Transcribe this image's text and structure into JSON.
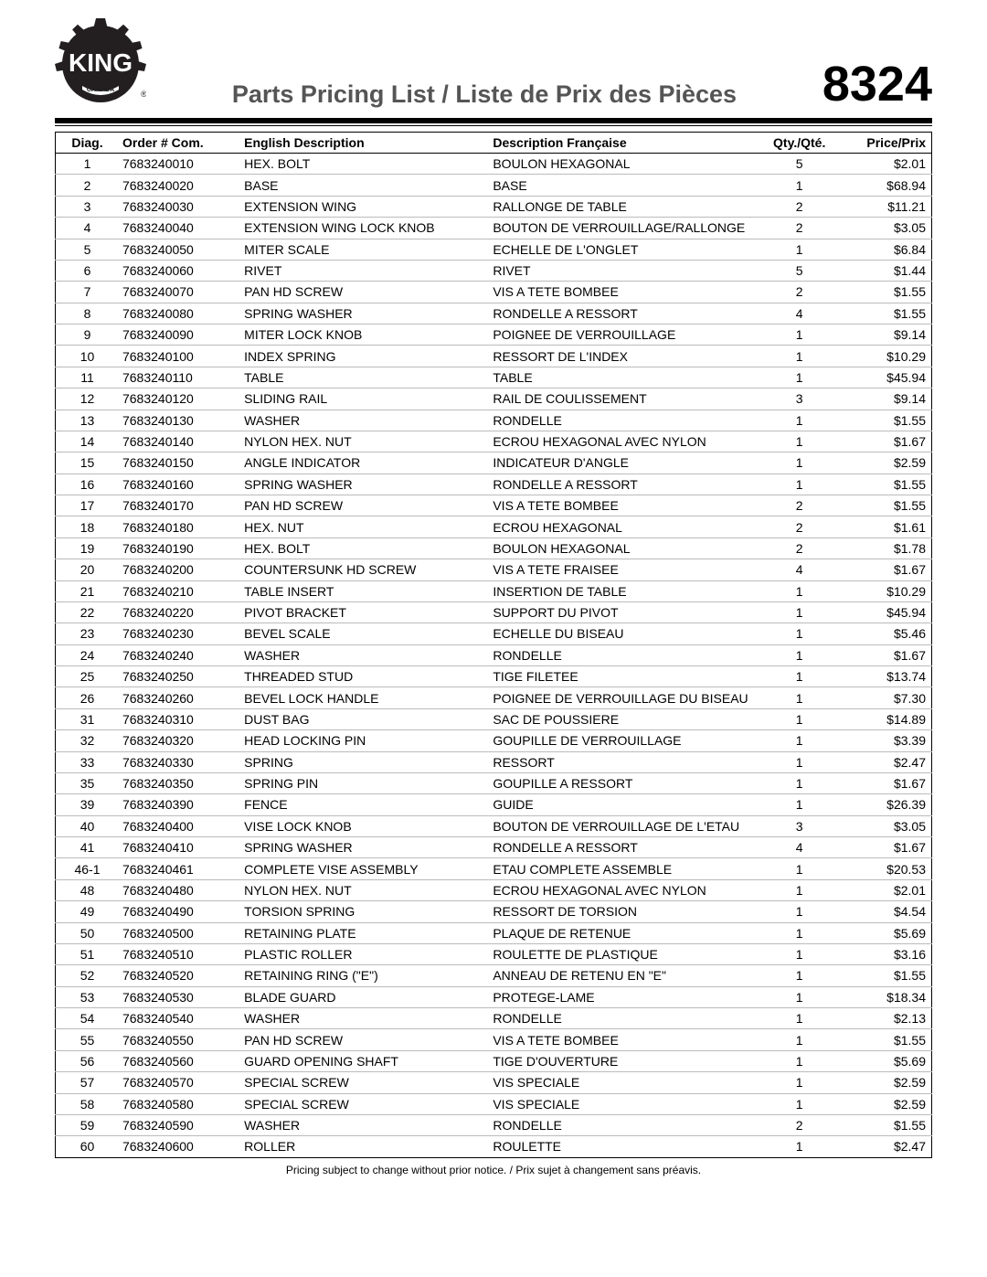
{
  "header": {
    "title": "Parts Pricing List / Liste de Prix des Pièces",
    "model": "8324",
    "logo_alt": "KING Canada"
  },
  "columns": {
    "diag": "Diag.",
    "order": "Order # Com.",
    "en": "English Description",
    "fr": "Description Française",
    "qty": "Qty./Qté.",
    "price": "Price/Prix"
  },
  "rows": [
    {
      "diag": "1",
      "order": "7683240010",
      "en": "HEX. BOLT",
      "fr": "BOULON HEXAGONAL",
      "qty": "5",
      "price": "$2.01"
    },
    {
      "diag": "2",
      "order": "7683240020",
      "en": "BASE",
      "fr": "BASE",
      "qty": "1",
      "price": "$68.94"
    },
    {
      "diag": "3",
      "order": "7683240030",
      "en": "EXTENSION WING",
      "fr": "RALLONGE DE TABLE",
      "qty": "2",
      "price": "$11.21"
    },
    {
      "diag": "4",
      "order": "7683240040",
      "en": "EXTENSION WING LOCK KNOB",
      "fr": "BOUTON DE VERROUILLAGE/RALLONGE",
      "qty": "2",
      "price": "$3.05"
    },
    {
      "diag": "5",
      "order": "7683240050",
      "en": "MITER SCALE",
      "fr": "ECHELLE DE L'ONGLET",
      "qty": "1",
      "price": "$6.84"
    },
    {
      "diag": "6",
      "order": "7683240060",
      "en": "RIVET",
      "fr": "RIVET",
      "qty": "5",
      "price": "$1.44"
    },
    {
      "diag": "7",
      "order": "7683240070",
      "en": "PAN HD SCREW",
      "fr": "VIS A TETE BOMBEE",
      "qty": "2",
      "price": "$1.55"
    },
    {
      "diag": "8",
      "order": "7683240080",
      "en": "SPRING WASHER",
      "fr": "RONDELLE A RESSORT",
      "qty": "4",
      "price": "$1.55"
    },
    {
      "diag": "9",
      "order": "7683240090",
      "en": "MITER LOCK KNOB",
      "fr": "POIGNEE DE VERROUILLAGE",
      "qty": "1",
      "price": "$9.14"
    },
    {
      "diag": "10",
      "order": "7683240100",
      "en": "INDEX SPRING",
      "fr": "RESSORT DE L'INDEX",
      "qty": "1",
      "price": "$10.29"
    },
    {
      "diag": "11",
      "order": "7683240110",
      "en": "TABLE",
      "fr": "TABLE",
      "qty": "1",
      "price": "$45.94"
    },
    {
      "diag": "12",
      "order": "7683240120",
      "en": "SLIDING RAIL",
      "fr": "RAIL DE COULISSEMENT",
      "qty": "3",
      "price": "$9.14"
    },
    {
      "diag": "13",
      "order": "7683240130",
      "en": "WASHER",
      "fr": "RONDELLE",
      "qty": "1",
      "price": "$1.55"
    },
    {
      "diag": "14",
      "order": "7683240140",
      "en": "NYLON HEX. NUT",
      "fr": "ECROU HEXAGONAL AVEC NYLON",
      "qty": "1",
      "price": "$1.67"
    },
    {
      "diag": "15",
      "order": "7683240150",
      "en": "ANGLE INDICATOR",
      "fr": "INDICATEUR D'ANGLE",
      "qty": "1",
      "price": "$2.59"
    },
    {
      "diag": "16",
      "order": "7683240160",
      "en": "SPRING WASHER",
      "fr": "RONDELLE A RESSORT",
      "qty": "1",
      "price": "$1.55"
    },
    {
      "diag": "17",
      "order": "7683240170",
      "en": "PAN HD SCREW",
      "fr": "VIS A TETE BOMBEE",
      "qty": "2",
      "price": "$1.55"
    },
    {
      "diag": "18",
      "order": "7683240180",
      "en": "HEX. NUT",
      "fr": "ECROU HEXAGONAL",
      "qty": "2",
      "price": "$1.61"
    },
    {
      "diag": "19",
      "order": "7683240190",
      "en": "HEX. BOLT",
      "fr": "BOULON HEXAGONAL",
      "qty": "2",
      "price": "$1.78"
    },
    {
      "diag": "20",
      "order": "7683240200",
      "en": "COUNTERSUNK HD SCREW",
      "fr": "VIS A TETE FRAISEE",
      "qty": "4",
      "price": "$1.67"
    },
    {
      "diag": "21",
      "order": "7683240210",
      "en": "TABLE INSERT",
      "fr": "INSERTION DE TABLE",
      "qty": "1",
      "price": "$10.29"
    },
    {
      "diag": "22",
      "order": "7683240220",
      "en": "PIVOT BRACKET",
      "fr": "SUPPORT DU PIVOT",
      "qty": "1",
      "price": "$45.94"
    },
    {
      "diag": "23",
      "order": "7683240230",
      "en": "BEVEL SCALE",
      "fr": "ECHELLE DU BISEAU",
      "qty": "1",
      "price": "$5.46"
    },
    {
      "diag": "24",
      "order": "7683240240",
      "en": "WASHER",
      "fr": "RONDELLE",
      "qty": "1",
      "price": "$1.67"
    },
    {
      "diag": "25",
      "order": "7683240250",
      "en": "THREADED STUD",
      "fr": "TIGE FILETEE",
      "qty": "1",
      "price": "$13.74"
    },
    {
      "diag": "26",
      "order": "7683240260",
      "en": "BEVEL LOCK HANDLE",
      "fr": "POIGNEE DE VERROUILLAGE DU BISEAU",
      "qty": "1",
      "price": "$7.30"
    },
    {
      "diag": "31",
      "order": "7683240310",
      "en": "DUST BAG",
      "fr": "SAC DE POUSSIERE",
      "qty": "1",
      "price": "$14.89"
    },
    {
      "diag": "32",
      "order": "7683240320",
      "en": "HEAD LOCKING PIN",
      "fr": "GOUPILLE DE VERROUILLAGE",
      "qty": "1",
      "price": "$3.39"
    },
    {
      "diag": "33",
      "order": "7683240330",
      "en": "SPRING",
      "fr": "RESSORT",
      "qty": "1",
      "price": "$2.47"
    },
    {
      "diag": "35",
      "order": "7683240350",
      "en": "SPRING PIN",
      "fr": "GOUPILLE A RESSORT",
      "qty": "1",
      "price": "$1.67"
    },
    {
      "diag": "39",
      "order": "7683240390",
      "en": "FENCE",
      "fr": "GUIDE",
      "qty": "1",
      "price": "$26.39"
    },
    {
      "diag": "40",
      "order": "7683240400",
      "en": "VISE LOCK KNOB",
      "fr": "BOUTON DE VERROUILLAGE DE L'ETAU",
      "qty": "3",
      "price": "$3.05"
    },
    {
      "diag": "41",
      "order": "7683240410",
      "en": "SPRING WASHER",
      "fr": "RONDELLE A RESSORT",
      "qty": "4",
      "price": "$1.67"
    },
    {
      "diag": "46-1",
      "order": "7683240461",
      "en": "COMPLETE VISE ASSEMBLY",
      "fr": "ETAU COMPLETE ASSEMBLE",
      "qty": "1",
      "price": "$20.53"
    },
    {
      "diag": "48",
      "order": "7683240480",
      "en": "NYLON HEX. NUT",
      "fr": "ECROU HEXAGONAL AVEC NYLON",
      "qty": "1",
      "price": "$2.01"
    },
    {
      "diag": "49",
      "order": "7683240490",
      "en": "TORSION SPRING",
      "fr": "RESSORT DE TORSION",
      "qty": "1",
      "price": "$4.54"
    },
    {
      "diag": "50",
      "order": "7683240500",
      "en": "RETAINING PLATE",
      "fr": "PLAQUE DE RETENUE",
      "qty": "1",
      "price": "$5.69"
    },
    {
      "diag": "51",
      "order": "7683240510",
      "en": "PLASTIC ROLLER",
      "fr": "ROULETTE DE PLASTIQUE",
      "qty": "1",
      "price": "$3.16"
    },
    {
      "diag": "52",
      "order": "7683240520",
      "en": "RETAINING RING (\"E\")",
      "fr": "ANNEAU DE RETENU EN \"E\"",
      "qty": "1",
      "price": "$1.55"
    },
    {
      "diag": "53",
      "order": "7683240530",
      "en": "BLADE GUARD",
      "fr": "PROTEGE-LAME",
      "qty": "1",
      "price": "$18.34"
    },
    {
      "diag": "54",
      "order": "7683240540",
      "en": "WASHER",
      "fr": "RONDELLE",
      "qty": "1",
      "price": "$2.13"
    },
    {
      "diag": "55",
      "order": "7683240550",
      "en": "PAN HD SCREW",
      "fr": "VIS A TETE BOMBEE",
      "qty": "1",
      "price": "$1.55"
    },
    {
      "diag": "56",
      "order": "7683240560",
      "en": "GUARD OPENING SHAFT",
      "fr": "TIGE D'OUVERTURE",
      "qty": "1",
      "price": "$5.69"
    },
    {
      "diag": "57",
      "order": "7683240570",
      "en": "SPECIAL SCREW",
      "fr": "VIS SPECIALE",
      "qty": "1",
      "price": "$2.59"
    },
    {
      "diag": "58",
      "order": "7683240580",
      "en": "SPECIAL SCREW",
      "fr": "VIS SPECIALE",
      "qty": "1",
      "price": "$2.59"
    },
    {
      "diag": "59",
      "order": "7683240590",
      "en": "WASHER",
      "fr": "RONDELLE",
      "qty": "2",
      "price": "$1.55"
    },
    {
      "diag": "60",
      "order": "7683240600",
      "en": "ROLLER",
      "fr": "ROULETTE",
      "qty": "1",
      "price": "$2.47"
    }
  ],
  "footnote": "Pricing subject to change without prior notice. / Prix sujet à changement sans préavis."
}
